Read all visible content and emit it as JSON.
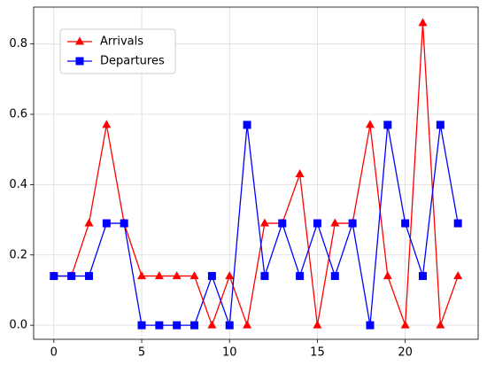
{
  "chart_data": {
    "type": "line",
    "x": [
      0,
      1,
      2,
      3,
      4,
      5,
      6,
      7,
      8,
      9,
      10,
      11,
      12,
      13,
      14,
      15,
      16,
      17,
      18,
      19,
      20,
      21,
      22,
      23
    ],
    "series": [
      {
        "name": "Arrivals",
        "color": "#ff0000",
        "marker": "triangle",
        "values": [
          0.14,
          0.14,
          0.29,
          0.57,
          0.29,
          0.14,
          0.14,
          0.14,
          0.14,
          0,
          0.14,
          0,
          0.29,
          0.29,
          0.43,
          0,
          0.29,
          0.29,
          0.57,
          0.14,
          0,
          0.86,
          0,
          0.14
        ]
      },
      {
        "name": "Departures",
        "color": "#0000ff",
        "marker": "square",
        "values": [
          0.14,
          0.14,
          0.14,
          0.29,
          0.29,
          0,
          0,
          0,
          0,
          0.14,
          0,
          0.57,
          0.14,
          0.29,
          0.14,
          0.29,
          0.14,
          0.29,
          0,
          0.57,
          0.29,
          0.14,
          0.57,
          0.29
        ]
      }
    ],
    "xlim": [
      -1.15,
      24.15
    ],
    "xticks": [
      0,
      5,
      10,
      15,
      20
    ],
    "ylim": [
      -0.04,
      0.905
    ],
    "yticks": [
      {
        "value": 0,
        "label": "0.0"
      },
      0.2,
      0.4,
      0.6,
      0.8
    ],
    "grid": true,
    "legend": "upper left"
  }
}
